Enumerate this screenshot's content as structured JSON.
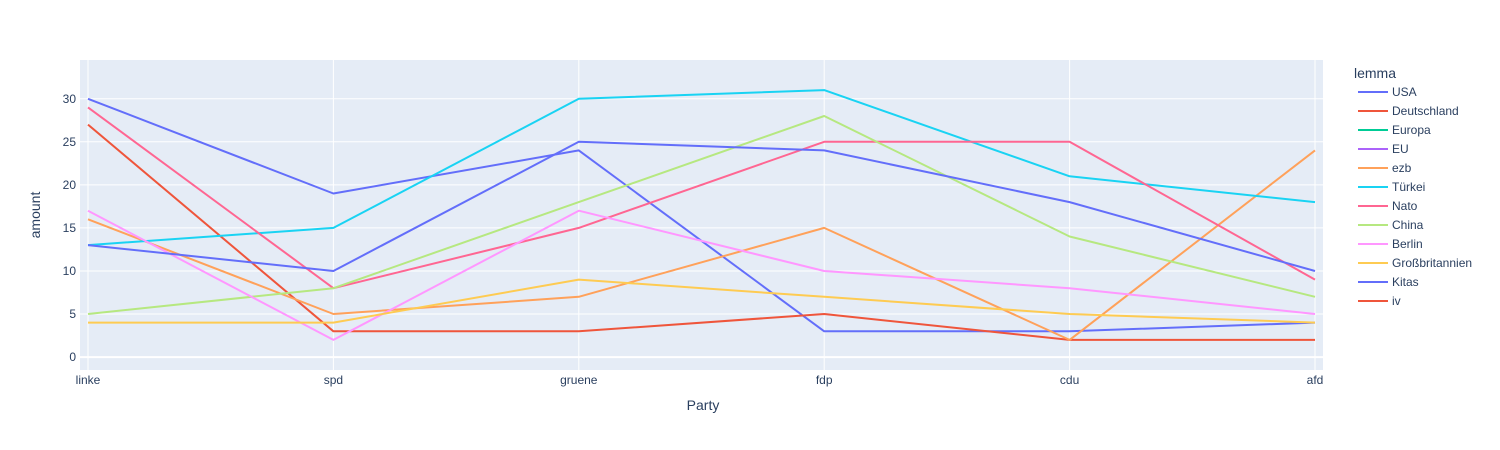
{
  "chart_data": {
    "type": "line",
    "xlabel": "Party",
    "ylabel": "amount",
    "categories": [
      "linke",
      "spd",
      "gruene",
      "fdp",
      "cdu",
      "afd"
    ],
    "ylim": [
      -1.5,
      34.5
    ],
    "yticks": [
      0,
      5,
      10,
      15,
      20,
      25,
      30
    ],
    "grid": true,
    "legend_title": "lemma",
    "legend_position": "right",
    "series": [
      {
        "name": "USA",
        "color": "#636efa",
        "values": [
          30,
          19,
          24,
          3,
          3,
          4
        ]
      },
      {
        "name": "Deutschland",
        "color": "#EF553B",
        "values": [
          27,
          3,
          3,
          5,
          2,
          2
        ]
      },
      {
        "name": "Europa",
        "color": "#00cc96",
        "values": [
          null,
          null,
          null,
          null,
          null,
          null
        ]
      },
      {
        "name": "EU",
        "color": "#ab63fa",
        "values": [
          null,
          null,
          null,
          null,
          null,
          null
        ]
      },
      {
        "name": "ezb",
        "color": "#FFA15A",
        "values": [
          16,
          5,
          7,
          15,
          2,
          24
        ]
      },
      {
        "name": "Türkei",
        "color": "#19d3f3",
        "values": [
          13,
          15,
          30,
          31,
          21,
          18
        ]
      },
      {
        "name": "Nato",
        "color": "#FF6692",
        "values": [
          29,
          8,
          15,
          25,
          25,
          9
        ]
      },
      {
        "name": "China",
        "color": "#B6E880",
        "values": [
          5,
          8,
          18,
          28,
          14,
          7
        ]
      },
      {
        "name": "Berlin",
        "color": "#FF97FF",
        "values": [
          17,
          2,
          17,
          10,
          8,
          5
        ]
      },
      {
        "name": "Großbritannien",
        "color": "#FECB52",
        "values": [
          4,
          4,
          9,
          7,
          5,
          4
        ]
      },
      {
        "name": "Kitas",
        "color": "#636efa",
        "values": [
          13,
          10,
          25,
          24,
          18,
          10
        ]
      },
      {
        "name": "iv",
        "color": "#EF553B",
        "values": [
          null,
          null,
          null,
          null,
          null,
          null
        ]
      }
    ]
  }
}
